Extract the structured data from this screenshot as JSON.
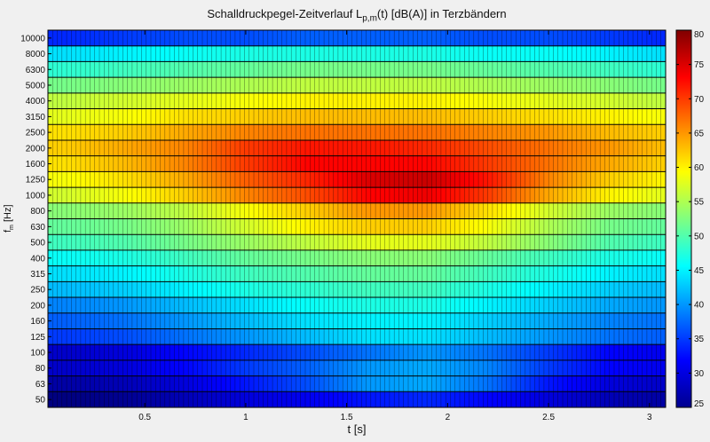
{
  "title": {
    "main": "Schalldruckpegel-Zeitverlauf L",
    "sub": "p,m",
    "tail": "(t) [dB(A)] in Terzbändern"
  },
  "xlabel": "t [s]",
  "ylabel": {
    "main": "f",
    "sub": "m",
    "unit": " [Hz]"
  },
  "chart_data": {
    "type": "heatmap",
    "title": "Schalldruckpegel-Zeitverlauf Lp,m(t) [dB(A)] in Terzbändern",
    "xlabel": "t [s]",
    "ylabel": "fm [Hz]",
    "xlim": [
      0.02,
      3.08
    ],
    "x_ticks": [
      0.5,
      1,
      1.5,
      2,
      2.5,
      3
    ],
    "x_tick_labels": [
      "0.5",
      "1",
      "1.5",
      "2",
      "2.5",
      "3"
    ],
    "x": [
      0.1,
      0.4,
      0.7,
      1.0,
      1.3,
      1.6,
      1.9,
      2.2,
      2.5,
      2.8,
      3.05
    ],
    "bands": [
      "50",
      "63",
      "80",
      "100",
      "125",
      "160",
      "200",
      "250",
      "315",
      "400",
      "500",
      "630",
      "800",
      "1000",
      "1250",
      "1600",
      "2000",
      "2500",
      "3150",
      "4000",
      "5000",
      "6300",
      "8000",
      "10000"
    ],
    "z": [
      [
        25,
        26,
        28,
        30,
        31,
        33,
        34,
        32,
        30,
        28,
        27
      ],
      [
        27,
        28,
        30,
        33,
        36,
        40,
        41,
        38,
        33,
        30,
        29
      ],
      [
        29,
        30,
        32,
        35,
        37,
        40,
        41,
        39,
        35,
        32,
        31
      ],
      [
        29,
        30,
        32,
        34,
        36,
        38,
        40,
        38,
        35,
        32,
        31
      ],
      [
        35,
        36,
        38,
        40,
        42,
        44,
        44,
        42,
        40,
        38,
        37
      ],
      [
        37,
        38,
        40,
        42,
        44,
        45,
        45,
        43,
        41,
        39,
        38
      ],
      [
        39,
        40,
        42,
        44,
        46,
        47,
        47,
        45,
        43,
        41,
        40
      ],
      [
        42,
        43,
        45,
        47,
        48,
        49,
        49,
        47,
        45,
        43,
        42
      ],
      [
        44,
        45,
        47,
        49,
        50,
        51,
        51,
        49,
        47,
        45,
        44
      ],
      [
        46,
        47,
        49,
        51,
        52,
        53,
        53,
        51,
        49,
        47,
        46
      ],
      [
        49,
        50,
        52,
        54,
        56,
        58,
        58,
        56,
        53,
        50,
        49
      ],
      [
        51,
        52,
        54,
        57,
        60,
        62,
        62,
        59,
        55,
        52,
        51
      ],
      [
        53,
        54,
        56,
        59,
        62,
        65,
        65,
        61,
        57,
        54,
        53
      ],
      [
        57,
        59,
        62,
        66,
        69,
        73,
        74,
        70,
        64,
        60,
        58
      ],
      [
        59,
        61,
        64,
        68,
        71,
        75,
        76,
        72,
        66,
        62,
        60
      ],
      [
        61,
        63,
        66,
        70,
        73,
        73,
        73,
        70,
        67,
        64,
        62
      ],
      [
        62,
        64,
        66,
        70,
        72,
        72,
        71,
        69,
        67,
        65,
        63
      ],
      [
        61,
        62,
        64,
        66,
        67,
        67,
        67,
        66,
        65,
        63,
        62
      ],
      [
        58,
        59,
        61,
        62,
        63,
        63,
        63,
        62,
        61,
        60,
        59
      ],
      [
        56,
        57,
        58,
        59,
        60,
        60,
        60,
        59,
        58,
        57,
        56
      ],
      [
        52,
        53,
        54,
        55,
        56,
        56,
        56,
        55,
        54,
        53,
        52
      ],
      [
        48,
        49,
        50,
        51,
        52,
        52,
        52,
        51,
        50,
        49,
        48
      ],
      [
        44,
        45,
        46,
        47,
        47,
        47,
        47,
        46,
        46,
        45,
        44
      ],
      [
        34,
        35,
        36,
        36,
        37,
        37,
        37,
        36,
        36,
        35,
        34
      ]
    ],
    "colorbar": {
      "range": [
        25,
        80
      ],
      "ticks": [
        25,
        30,
        35,
        40,
        45,
        50,
        55,
        60,
        65,
        70,
        75,
        80
      ],
      "colormap": "jet"
    },
    "grid": true
  }
}
